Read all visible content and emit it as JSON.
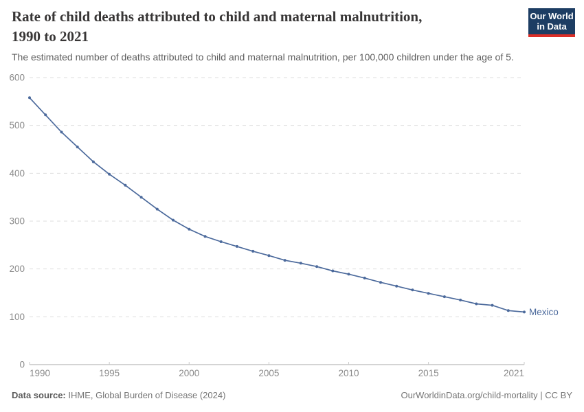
{
  "header": {
    "title_lines": [
      "Rate of child deaths attributed to child and maternal malnutrition,",
      "1990 to 2021"
    ],
    "subtitle": "The estimated number of deaths attributed to child and maternal malnutrition, per 100,000 children under the age of 5.",
    "logo": {
      "line1": "Our World",
      "line2": "in Data",
      "bg_color": "#1d3d63",
      "accent_color": "#dc2e27"
    }
  },
  "chart_data": {
    "type": "line",
    "title": "Rate of child deaths attributed to child and maternal malnutrition, 1990 to 2021",
    "subtitle": "The estimated number of deaths attributed to child and maternal malnutrition, per 100,000 children under the age of 5.",
    "xlim": [
      1990,
      2021
    ],
    "ylim": [
      0,
      600
    ],
    "y_ticks": [
      0,
      100,
      200,
      300,
      400,
      500,
      600
    ],
    "x_tick_labels": [
      1990,
      1995,
      2000,
      2005,
      2010,
      2015,
      2021
    ],
    "grid": "horizontal-dashed",
    "legend_position": "end-of-line-label",
    "line_color": "#4c6a9c",
    "series": [
      {
        "name": "Mexico",
        "x": [
          1990,
          1991,
          1992,
          1993,
          1994,
          1995,
          1996,
          1997,
          1998,
          1999,
          2000,
          2001,
          2002,
          2003,
          2004,
          2005,
          2006,
          2007,
          2008,
          2009,
          2010,
          2011,
          2012,
          2013,
          2014,
          2015,
          2016,
          2017,
          2018,
          2019,
          2020,
          2021
        ],
        "values": [
          558,
          522,
          486,
          455,
          424,
          398,
          375,
          350,
          325,
          302,
          283,
          268,
          257,
          247,
          237,
          228,
          218,
          212,
          205,
          196,
          189,
          181,
          172,
          164,
          156,
          149,
          142,
          135,
          127,
          124,
          113,
          110
        ]
      }
    ]
  },
  "footer": {
    "source_label": "Data source:",
    "source_value": " IHME, Global Burden of Disease (2024)",
    "credit": "OurWorldinData.org/child-mortality | CC BY"
  }
}
